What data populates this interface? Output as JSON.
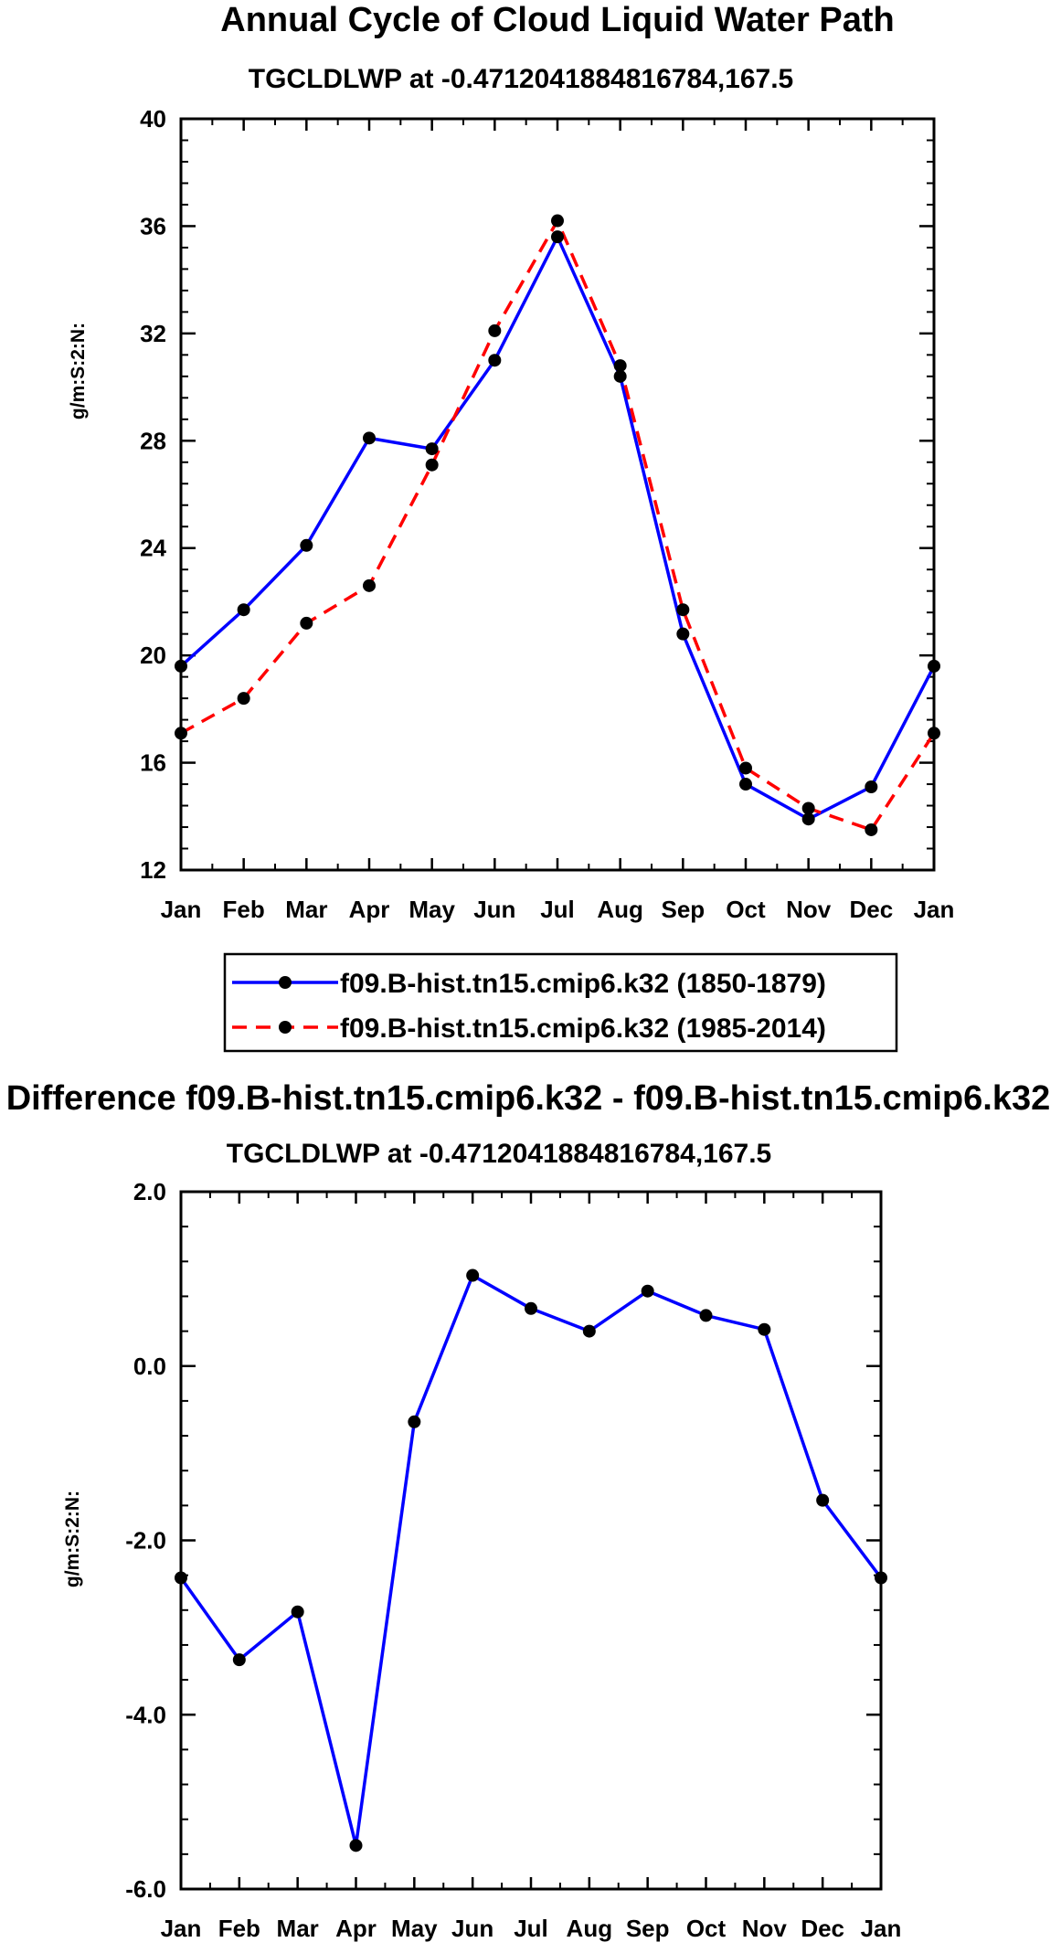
{
  "chart_data": [
    {
      "type": "line",
      "title": "Annual Cycle of Cloud Liquid Water Path",
      "subtitle": "TGCLDLWP at -0.4712041884816784,167.5",
      "xlabel": "",
      "ylabel": "g/m:S:2:N:",
      "categories": [
        "Jan",
        "Feb",
        "Mar",
        "Apr",
        "May",
        "Jun",
        "Jul",
        "Aug",
        "Sep",
        "Oct",
        "Nov",
        "Dec",
        "Jan"
      ],
      "ylim": [
        12,
        40
      ],
      "yticks": [
        12,
        16,
        20,
        24,
        28,
        32,
        36,
        40
      ],
      "ytick_labels": [
        "12",
        "16",
        "20",
        "24",
        "28",
        "32",
        "36",
        "40"
      ],
      "grid": false,
      "legend_position": "below",
      "series": [
        {
          "name": "f09.B-hist.tn15.cmip6.k32 (1850-1879)",
          "color": "#0000ff",
          "line_style": "solid",
          "values": [
            19.6,
            21.7,
            24.1,
            28.1,
            27.7,
            31.0,
            35.6,
            30.4,
            20.8,
            15.2,
            13.9,
            15.1,
            19.6
          ]
        },
        {
          "name": "f09.B-hist.tn15.cmip6.k32 (1985-2014)",
          "color": "#ff0000",
          "line_style": "dashed",
          "values": [
            17.1,
            18.4,
            21.2,
            22.6,
            27.1,
            32.1,
            36.2,
            30.8,
            21.7,
            15.8,
            14.3,
            13.5,
            17.1
          ]
        }
      ]
    },
    {
      "type": "line",
      "title": "Difference f09.B-hist.tn15.cmip6.k32 - f09.B-hist.tn15.cmip6.k32",
      "subtitle": "TGCLDLWP at -0.4712041884816784,167.5",
      "xlabel": "",
      "ylabel": "g/m:S:2:N:",
      "categories": [
        "Jan",
        "Feb",
        "Mar",
        "Apr",
        "May",
        "Jun",
        "Jul",
        "Aug",
        "Sep",
        "Oct",
        "Nov",
        "Dec",
        "Jan"
      ],
      "ylim": [
        -6,
        2
      ],
      "yticks": [
        -6,
        -4,
        -2,
        0,
        2
      ],
      "ytick_labels": [
        "-6.0",
        "-4.0",
        "-2.0",
        "0.0",
        "2.0"
      ],
      "grid": false,
      "series": [
        {
          "name": "difference",
          "color": "#0000ff",
          "line_style": "solid",
          "values": [
            -2.43,
            -3.37,
            -2.82,
            -5.5,
            -0.64,
            1.04,
            0.66,
            0.4,
            0.86,
            0.58,
            0.42,
            -1.54,
            -2.43
          ]
        }
      ]
    }
  ]
}
